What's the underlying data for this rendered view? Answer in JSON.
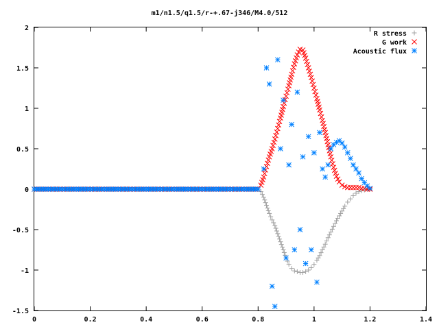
{
  "chart_data": {
    "type": "scatter",
    "title": "m1/n1.5/q1.5/r-+.67-j346/M4.0/512",
    "xlabel": "",
    "ylabel": "",
    "xlim": [
      0,
      1.4
    ],
    "ylim": [
      -1.5,
      2
    ],
    "x_ticks": [
      "0",
      "0.2",
      "0.4",
      "0.6",
      "0.8",
      "1",
      "1.2",
      "1.4"
    ],
    "y_ticks": [
      "-1.5",
      "-1",
      "-0.5",
      "0",
      "0.5",
      "1",
      "1.5",
      "2"
    ],
    "grid": false,
    "legend_position": "top-right",
    "series": [
      {
        "name": "R stress",
        "marker": "plus",
        "color": "#a0a0a0",
        "points": [
          [
            0.0,
            0
          ],
          [
            0.1,
            0
          ],
          [
            0.2,
            0
          ],
          [
            0.3,
            0
          ],
          [
            0.4,
            0
          ],
          [
            0.5,
            0
          ],
          [
            0.6,
            0
          ],
          [
            0.7,
            0
          ],
          [
            0.78,
            0
          ],
          [
            0.8,
            0
          ],
          [
            0.81,
            -0.03
          ],
          [
            0.82,
            -0.1
          ],
          [
            0.83,
            -0.2
          ],
          [
            0.84,
            -0.3
          ],
          [
            0.85,
            -0.38
          ],
          [
            0.86,
            -0.45
          ],
          [
            0.87,
            -0.55
          ],
          [
            0.88,
            -0.65
          ],
          [
            0.89,
            -0.75
          ],
          [
            0.9,
            -0.85
          ],
          [
            0.91,
            -0.93
          ],
          [
            0.92,
            -0.98
          ],
          [
            0.93,
            -1.01
          ],
          [
            0.94,
            -1.02
          ],
          [
            0.95,
            -1.03
          ],
          [
            0.96,
            -1.03
          ],
          [
            0.97,
            -1.02
          ],
          [
            0.98,
            -1.0
          ],
          [
            0.99,
            -0.97
          ],
          [
            1.0,
            -0.93
          ],
          [
            1.01,
            -0.88
          ],
          [
            1.02,
            -0.82
          ],
          [
            1.03,
            -0.75
          ],
          [
            1.04,
            -0.68
          ],
          [
            1.05,
            -0.6
          ],
          [
            1.06,
            -0.53
          ],
          [
            1.07,
            -0.46
          ],
          [
            1.08,
            -0.39
          ],
          [
            1.09,
            -0.33
          ],
          [
            1.1,
            -0.27
          ],
          [
            1.11,
            -0.21
          ],
          [
            1.12,
            -0.16
          ],
          [
            1.13,
            -0.12
          ],
          [
            1.14,
            -0.08
          ],
          [
            1.15,
            -0.05
          ],
          [
            1.16,
            -0.03
          ],
          [
            1.17,
            -0.02
          ],
          [
            1.18,
            -0.01
          ],
          [
            1.19,
            0
          ],
          [
            1.2,
            0
          ]
        ]
      },
      {
        "name": "G work",
        "marker": "cross",
        "color": "#ff0000",
        "points": [
          [
            0.0,
            0
          ],
          [
            0.1,
            0
          ],
          [
            0.2,
            0
          ],
          [
            0.3,
            0
          ],
          [
            0.4,
            0
          ],
          [
            0.5,
            0
          ],
          [
            0.6,
            0
          ],
          [
            0.7,
            0
          ],
          [
            0.78,
            0
          ],
          [
            0.8,
            0
          ],
          [
            0.81,
            0.05
          ],
          [
            0.82,
            0.15
          ],
          [
            0.83,
            0.28
          ],
          [
            0.84,
            0.4
          ],
          [
            0.85,
            0.5
          ],
          [
            0.86,
            0.62
          ],
          [
            0.87,
            0.75
          ],
          [
            0.88,
            0.88
          ],
          [
            0.89,
            1.02
          ],
          [
            0.9,
            1.15
          ],
          [
            0.91,
            1.28
          ],
          [
            0.92,
            1.42
          ],
          [
            0.93,
            1.55
          ],
          [
            0.94,
            1.66
          ],
          [
            0.95,
            1.73
          ],
          [
            0.96,
            1.72
          ],
          [
            0.97,
            1.62
          ],
          [
            0.98,
            1.5
          ],
          [
            0.99,
            1.38
          ],
          [
            1.0,
            1.25
          ],
          [
            1.01,
            1.12
          ],
          [
            1.02,
            0.98
          ],
          [
            1.03,
            0.85
          ],
          [
            1.04,
            0.7
          ],
          [
            1.05,
            0.55
          ],
          [
            1.06,
            0.4
          ],
          [
            1.07,
            0.27
          ],
          [
            1.08,
            0.16
          ],
          [
            1.09,
            0.09
          ],
          [
            1.1,
            0.05
          ],
          [
            1.11,
            0.03
          ],
          [
            1.12,
            0.02
          ],
          [
            1.13,
            0.02
          ],
          [
            1.14,
            0.02
          ],
          [
            1.15,
            0.02
          ],
          [
            1.16,
            0.02
          ],
          [
            1.17,
            0.01
          ],
          [
            1.18,
            0.01
          ],
          [
            1.19,
            0
          ],
          [
            1.2,
            0
          ]
        ]
      },
      {
        "name": "Acoustic flux",
        "marker": "star",
        "color": "#0080ff",
        "points": [
          [
            0.0,
            0
          ],
          [
            0.05,
            0
          ],
          [
            0.1,
            0
          ],
          [
            0.15,
            0
          ],
          [
            0.2,
            0
          ],
          [
            0.25,
            0
          ],
          [
            0.3,
            0
          ],
          [
            0.35,
            0
          ],
          [
            0.4,
            0
          ],
          [
            0.45,
            0
          ],
          [
            0.5,
            0
          ],
          [
            0.55,
            0
          ],
          [
            0.6,
            0
          ],
          [
            0.65,
            0
          ],
          [
            0.7,
            0
          ],
          [
            0.75,
            0
          ],
          [
            0.8,
            0
          ],
          [
            0.82,
            0.25
          ],
          [
            0.83,
            1.5
          ],
          [
            0.84,
            1.3
          ],
          [
            0.85,
            -1.2
          ],
          [
            0.86,
            -1.45
          ],
          [
            0.87,
            1.6
          ],
          [
            0.88,
            0.5
          ],
          [
            0.89,
            1.1
          ],
          [
            0.9,
            -0.85
          ],
          [
            0.91,
            0.3
          ],
          [
            0.92,
            0.8
          ],
          [
            0.93,
            -0.75
          ],
          [
            0.94,
            1.2
          ],
          [
            0.95,
            -0.5
          ],
          [
            0.96,
            0.4
          ],
          [
            0.97,
            -0.92
          ],
          [
            0.98,
            0.65
          ],
          [
            0.99,
            -0.75
          ],
          [
            1.0,
            0.45
          ],
          [
            1.01,
            -1.15
          ],
          [
            1.02,
            0.7
          ],
          [
            1.03,
            0.25
          ],
          [
            1.04,
            0.15
          ],
          [
            1.05,
            0.3
          ],
          [
            1.06,
            0.5
          ],
          [
            1.07,
            0.55
          ],
          [
            1.08,
            0.58
          ],
          [
            1.09,
            0.6
          ],
          [
            1.1,
            0.57
          ],
          [
            1.11,
            0.52
          ],
          [
            1.12,
            0.45
          ],
          [
            1.13,
            0.38
          ],
          [
            1.14,
            0.3
          ],
          [
            1.15,
            0.25
          ],
          [
            1.16,
            0.2
          ],
          [
            1.17,
            0.13
          ],
          [
            1.18,
            0.08
          ],
          [
            1.19,
            0.04
          ],
          [
            1.2,
            0.01
          ]
        ]
      }
    ]
  }
}
